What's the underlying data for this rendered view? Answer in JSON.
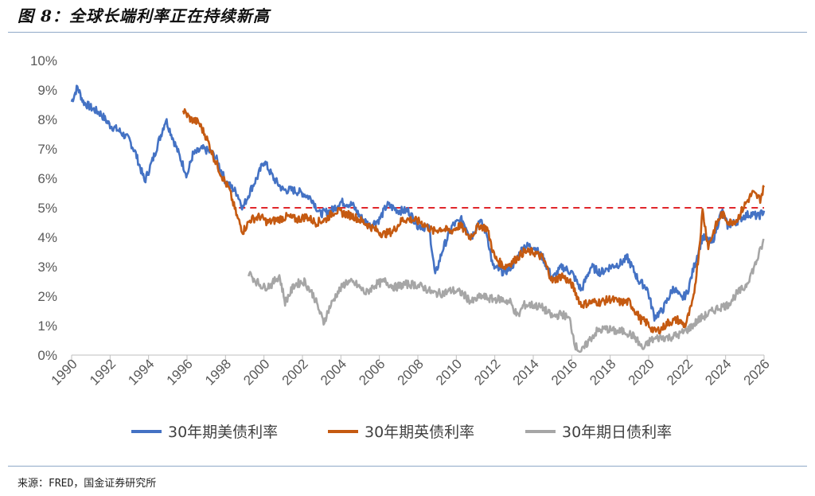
{
  "figure": {
    "title": "图 8：全球长端利率正在持续新高",
    "source": "来源：FRED，国金证券研究所"
  },
  "chart_data": {
    "type": "line",
    "title": "",
    "xlabel": "",
    "ylabel": "",
    "xlim": [
      1990,
      2026
    ],
    "ylim": [
      0,
      10
    ],
    "y_unit": "%",
    "x_ticks": [
      "1990",
      "1992",
      "1994",
      "1996",
      "1998",
      "2000",
      "2002",
      "2004",
      "2006",
      "2008",
      "2010",
      "2012",
      "2014",
      "2016",
      "2018",
      "2020",
      "2022",
      "2024",
      "2026"
    ],
    "y_ticks": [
      "0%",
      "1%",
      "2%",
      "3%",
      "4%",
      "5%",
      "6%",
      "7%",
      "8%",
      "9%",
      "10%"
    ],
    "grid": false,
    "legend_position": "bottom",
    "reference_line": {
      "y": 5.0,
      "style": "dashed",
      "color": "#e0262b"
    },
    "series": [
      {
        "name": "30年期美债利率",
        "color": "#4472c4",
        "points": [
          [
            1990,
            8.6
          ],
          [
            1990.3,
            9.1
          ],
          [
            1990.6,
            8.6
          ],
          [
            1991,
            8.4
          ],
          [
            1991.5,
            8.2
          ],
          [
            1992,
            7.8
          ],
          [
            1992.5,
            7.6
          ],
          [
            1993,
            7.3
          ],
          [
            1993.3,
            6.9
          ],
          [
            1993.8,
            5.9
          ],
          [
            1994.2,
            6.6
          ],
          [
            1994.6,
            7.4
          ],
          [
            1994.9,
            8.0
          ],
          [
            1995.3,
            7.3
          ],
          [
            1995.7,
            6.6
          ],
          [
            1996,
            6.1
          ],
          [
            1996.3,
            6.8
          ],
          [
            1996.8,
            7.0
          ],
          [
            1997.2,
            6.9
          ],
          [
            1997.5,
            6.7
          ],
          [
            1998,
            5.9
          ],
          [
            1998.6,
            5.5
          ],
          [
            1998.9,
            5.0
          ],
          [
            1999.3,
            5.6
          ],
          [
            1999.7,
            6.1
          ],
          [
            2000,
            6.6
          ],
          [
            2000.5,
            6.0
          ],
          [
            2001,
            5.6
          ],
          [
            2001.5,
            5.6
          ],
          [
            2002,
            5.5
          ],
          [
            2002.5,
            5.3
          ],
          [
            2002.9,
            4.8
          ],
          [
            2003.5,
            4.9
          ],
          [
            2004,
            5.2
          ],
          [
            2004.6,
            5.1
          ],
          [
            2005,
            4.7
          ],
          [
            2005.5,
            4.4
          ],
          [
            2006,
            4.6
          ],
          [
            2006.4,
            5.1
          ],
          [
            2007,
            4.9
          ],
          [
            2007.5,
            4.9
          ],
          [
            2008,
            4.4
          ],
          [
            2008.6,
            4.3
          ],
          [
            2008.9,
            2.7
          ],
          [
            2009.3,
            3.6
          ],
          [
            2009.8,
            4.4
          ],
          [
            2010.3,
            4.6
          ],
          [
            2010.8,
            4.0
          ],
          [
            2011.2,
            4.6
          ],
          [
            2011.6,
            4.1
          ],
          [
            2011.9,
            3.0
          ],
          [
            2012.5,
            2.8
          ],
          [
            2013,
            3.1
          ],
          [
            2013.5,
            3.7
          ],
          [
            2014,
            3.7
          ],
          [
            2014.5,
            3.3
          ],
          [
            2015,
            2.6
          ],
          [
            2015.5,
            3.0
          ],
          [
            2016,
            2.8
          ],
          [
            2016.5,
            2.2
          ],
          [
            2017,
            3.0
          ],
          [
            2017.5,
            2.8
          ],
          [
            2018,
            3.0
          ],
          [
            2018.5,
            3.1
          ],
          [
            2018.9,
            3.3
          ],
          [
            2019.5,
            2.5
          ],
          [
            2019.9,
            2.3
          ],
          [
            2020.3,
            1.3
          ],
          [
            2020.7,
            1.5
          ],
          [
            2021,
            1.9
          ],
          [
            2021.3,
            2.3
          ],
          [
            2021.7,
            1.9
          ],
          [
            2022,
            2.1
          ],
          [
            2022.4,
            3.1
          ],
          [
            2022.8,
            4.0
          ],
          [
            2023.3,
            3.8
          ],
          [
            2023.8,
            4.9
          ],
          [
            2024.1,
            4.4
          ],
          [
            2024.5,
            4.5
          ],
          [
            2024.9,
            4.7
          ],
          [
            2025.3,
            4.8
          ],
          [
            2025.7,
            4.7
          ],
          [
            2026,
            4.9
          ]
        ]
      },
      {
        "name": "30年期英债利率",
        "color": "#c55a11",
        "points": [
          [
            1995.8,
            8.3
          ],
          [
            1996.2,
            8.0
          ],
          [
            1996.6,
            7.9
          ],
          [
            1997,
            7.4
          ],
          [
            1997.4,
            6.7
          ],
          [
            1997.8,
            6.1
          ],
          [
            1998.2,
            5.6
          ],
          [
            1998.6,
            4.7
          ],
          [
            1998.9,
            4.2
          ],
          [
            1999.3,
            4.6
          ],
          [
            1999.8,
            4.7
          ],
          [
            2000.2,
            4.5
          ],
          [
            2000.7,
            4.6
          ],
          [
            2001.2,
            4.7
          ],
          [
            2001.7,
            4.6
          ],
          [
            2002.2,
            4.7
          ],
          [
            2002.7,
            4.5
          ],
          [
            2003.2,
            4.6
          ],
          [
            2003.7,
            4.9
          ],
          [
            2004.2,
            4.8
          ],
          [
            2004.7,
            4.7
          ],
          [
            2005.2,
            4.5
          ],
          [
            2005.7,
            4.3
          ],
          [
            2006.2,
            4.1
          ],
          [
            2006.7,
            4.2
          ],
          [
            2007.2,
            4.6
          ],
          [
            2007.7,
            4.6
          ],
          [
            2008.2,
            4.5
          ],
          [
            2008.8,
            4.2
          ],
          [
            2009.2,
            4.3
          ],
          [
            2009.7,
            4.2
          ],
          [
            2010.2,
            4.4
          ],
          [
            2010.7,
            4.0
          ],
          [
            2011.2,
            4.4
          ],
          [
            2011.6,
            4.3
          ],
          [
            2012,
            3.3
          ],
          [
            2012.5,
            3.0
          ],
          [
            2013,
            3.2
          ],
          [
            2013.5,
            3.5
          ],
          [
            2014,
            3.5
          ],
          [
            2014.5,
            3.3
          ],
          [
            2015,
            2.5
          ],
          [
            2015.5,
            2.7
          ],
          [
            2016,
            2.4
          ],
          [
            2016.5,
            1.7
          ],
          [
            2017,
            1.8
          ],
          [
            2017.5,
            1.8
          ],
          [
            2018,
            1.9
          ],
          [
            2018.5,
            1.8
          ],
          [
            2019,
            1.8
          ],
          [
            2019.6,
            1.2
          ],
          [
            2019.9,
            1.1
          ],
          [
            2020.3,
            0.8
          ],
          [
            2020.7,
            0.9
          ],
          [
            2021,
            1.1
          ],
          [
            2021.5,
            1.2
          ],
          [
            2021.9,
            1.0
          ],
          [
            2022.3,
            1.8
          ],
          [
            2022.6,
            3.4
          ],
          [
            2022.8,
            4.9
          ],
          [
            2023.1,
            3.7
          ],
          [
            2023.5,
            4.4
          ],
          [
            2023.8,
            4.8
          ],
          [
            2024.2,
            4.5
          ],
          [
            2024.6,
            4.6
          ],
          [
            2025,
            5.1
          ],
          [
            2025.4,
            5.5
          ],
          [
            2025.8,
            5.3
          ],
          [
            2026,
            5.7
          ]
        ]
      },
      {
        "name": "30年期日债利率",
        "color": "#a6a6a6",
        "points": [
          [
            1999.2,
            2.8
          ],
          [
            1999.6,
            2.5
          ],
          [
            2000,
            2.3
          ],
          [
            2000.4,
            2.4
          ],
          [
            2000.8,
            2.7
          ],
          [
            2001.1,
            1.8
          ],
          [
            2001.6,
            2.4
          ],
          [
            2002.1,
            2.5
          ],
          [
            2002.6,
            2.0
          ],
          [
            2003.1,
            1.1
          ],
          [
            2003.4,
            1.6
          ],
          [
            2003.8,
            2.1
          ],
          [
            2004.3,
            2.5
          ],
          [
            2004.8,
            2.4
          ],
          [
            2005.3,
            2.1
          ],
          [
            2005.8,
            2.4
          ],
          [
            2006.3,
            2.5
          ],
          [
            2006.8,
            2.3
          ],
          [
            2007.3,
            2.4
          ],
          [
            2007.8,
            2.4
          ],
          [
            2008.3,
            2.3
          ],
          [
            2008.8,
            2.1
          ],
          [
            2009.3,
            2.1
          ],
          [
            2009.8,
            2.2
          ],
          [
            2010.3,
            2.1
          ],
          [
            2010.8,
            1.8
          ],
          [
            2011.3,
            2.0
          ],
          [
            2011.8,
            1.9
          ],
          [
            2012.3,
            1.9
          ],
          [
            2012.8,
            1.8
          ],
          [
            2013.2,
            1.3
          ],
          [
            2013.5,
            1.7
          ],
          [
            2014,
            1.7
          ],
          [
            2014.5,
            1.6
          ],
          [
            2015,
            1.3
          ],
          [
            2015.5,
            1.4
          ],
          [
            2015.9,
            1.2
          ],
          [
            2016.2,
            0.3
          ],
          [
            2016.5,
            0.1
          ],
          [
            2016.9,
            0.5
          ],
          [
            2017.3,
            0.8
          ],
          [
            2017.8,
            0.9
          ],
          [
            2018.3,
            0.8
          ],
          [
            2018.8,
            0.8
          ],
          [
            2019.3,
            0.6
          ],
          [
            2019.7,
            0.2
          ],
          [
            2020.1,
            0.5
          ],
          [
            2020.6,
            0.6
          ],
          [
            2021.1,
            0.6
          ],
          [
            2021.6,
            0.7
          ],
          [
            2022.1,
            0.9
          ],
          [
            2022.6,
            1.2
          ],
          [
            2023.1,
            1.4
          ],
          [
            2023.6,
            1.6
          ],
          [
            2024.1,
            1.7
          ],
          [
            2024.6,
            2.1
          ],
          [
            2025,
            2.3
          ],
          [
            2025.5,
            3.0
          ],
          [
            2026,
            3.9
          ]
        ]
      }
    ]
  }
}
